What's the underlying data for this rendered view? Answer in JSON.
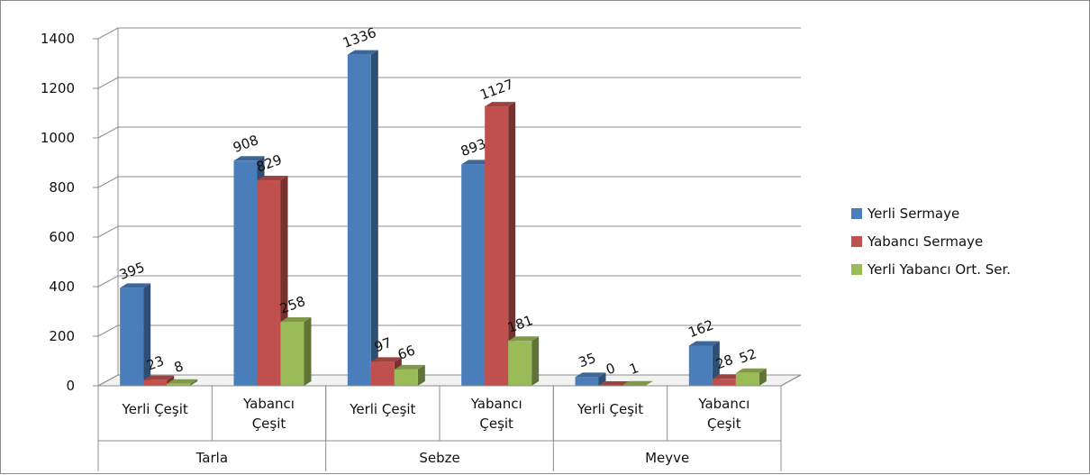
{
  "chart_data": {
    "type": "bar",
    "ylim": [
      0,
      1400
    ],
    "yticks": [
      "0",
      "200",
      "400",
      "600",
      "800",
      "1000",
      "1200",
      "1400"
    ],
    "grid": true,
    "legend_position": "right",
    "groups": [
      {
        "label": "Tarla",
        "categories": [
          [
            "Yerli Çeşit"
          ],
          [
            "Yabancı",
            "Çeşit"
          ]
        ]
      },
      {
        "label": "Sebze",
        "categories": [
          [
            "Yerli Çeşit"
          ],
          [
            "Yabancı",
            "Çeşit"
          ]
        ]
      },
      {
        "label": "Meyve",
        "categories": [
          [
            "Yerli Çeşit"
          ],
          [
            "Yabancı",
            "Çeşit"
          ]
        ]
      }
    ],
    "series": [
      {
        "name": "Yerli Sermaye",
        "color": "#4a7ebb",
        "values": [
          395,
          908,
          1336,
          893,
          35,
          162
        ]
      },
      {
        "name": "Yabancı Sermaye",
        "color": "#c0504d",
        "values": [
          23,
          829,
          97,
          1127,
          0,
          28
        ]
      },
      {
        "name": "Yerli Yabancı Ort. Ser.",
        "color": "#9bbb59",
        "values": [
          8,
          258,
          66,
          181,
          1,
          52
        ]
      }
    ]
  }
}
